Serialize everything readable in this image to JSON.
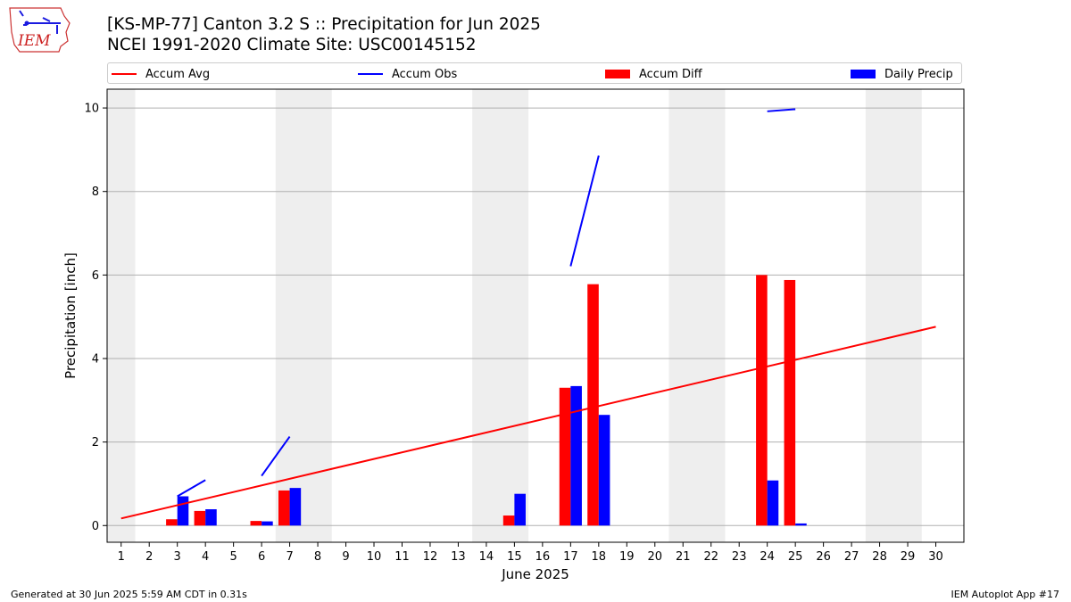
{
  "header": {
    "title_line1": "[KS-MP-77] Canton 3.2 S :: Precipitation for Jun 2025",
    "title_line2": "NCEI 1991-2020 Climate Site: USC00145152"
  },
  "logo": {
    "text": "IEM",
    "icon": "iowa-state-outline-logo"
  },
  "legend": {
    "placement": "top",
    "items": [
      {
        "label": "Accum Avg",
        "kind": "line",
        "color": "#ff0000"
      },
      {
        "label": "Accum Obs",
        "kind": "line",
        "color": "#0000ff"
      },
      {
        "label": "Accum Diff",
        "kind": "bar",
        "color": "#ff0000"
      },
      {
        "label": "Daily Precip",
        "kind": "bar",
        "color": "#0000ff"
      }
    ]
  },
  "footer": {
    "left": "Generated at 30 Jun 2025 5:59 AM CDT in 0.31s",
    "right": "IEM Autoplot App #17"
  },
  "colors": {
    "avg": "#ff0000",
    "obs": "#0000ff",
    "weekend": "#eeeeee",
    "grid": "#b0b0b0"
  },
  "chart_data": {
    "type": "bar",
    "title": "[KS-MP-77] Canton 3.2 S :: Precipitation for Jun 2025",
    "xlabel": "June 2025",
    "ylabel": "Precipitation [inch]",
    "xlim": [
      0.5,
      31
    ],
    "ylim": [
      -0.4,
      10.45
    ],
    "y_ticks": [
      0,
      2,
      4,
      6,
      8,
      10
    ],
    "x_ticks": [
      "1",
      "2",
      "3",
      "4",
      "5",
      "6",
      "7",
      "8",
      "9",
      "10",
      "11",
      "12",
      "13",
      "14",
      "15",
      "16",
      "17",
      "18",
      "19",
      "20",
      "21",
      "22",
      "23",
      "24",
      "25",
      "26",
      "27",
      "28",
      "29",
      "30"
    ],
    "grid": "y",
    "shaded_weekend_days": [
      [
        0.5,
        1.5
      ],
      [
        6.5,
        8.5
      ],
      [
        13.5,
        15.5
      ],
      [
        20.5,
        22.5
      ],
      [
        27.5,
        29.5
      ]
    ],
    "days": [
      1,
      2,
      3,
      4,
      5,
      6,
      7,
      8,
      9,
      10,
      11,
      12,
      13,
      14,
      15,
      16,
      17,
      18,
      19,
      20,
      21,
      22,
      23,
      24,
      25,
      26,
      27,
      28,
      29,
      30
    ],
    "accum_avg": {
      "start": [
        1,
        0.17
      ],
      "end": [
        30,
        4.76
      ]
    },
    "accum_obs_segments": [
      [
        [
          3,
          0.7
        ],
        [
          4,
          1.09
        ]
      ],
      [
        [
          6,
          1.19
        ],
        [
          7,
          2.13
        ]
      ],
      [
        [
          17,
          6.21
        ],
        [
          18,
          8.86
        ]
      ],
      [
        [
          24,
          9.92
        ],
        [
          25,
          9.97
        ]
      ]
    ],
    "series": [
      {
        "name": "Accum Diff",
        "points": [
          [
            3,
            0.15
          ],
          [
            4,
            0.35
          ],
          [
            6,
            0.11
          ],
          [
            7,
            0.84
          ],
          [
            15,
            0.24
          ],
          [
            17,
            3.3
          ],
          [
            18,
            5.78
          ],
          [
            24,
            6.0
          ],
          [
            25,
            5.88
          ]
        ]
      },
      {
        "name": "Daily Precip",
        "points": [
          [
            3,
            0.7
          ],
          [
            4,
            0.39
          ],
          [
            6,
            0.1
          ],
          [
            7,
            0.9
          ],
          [
            15,
            0.76
          ],
          [
            17,
            3.34
          ],
          [
            18,
            2.65
          ],
          [
            24,
            1.08
          ],
          [
            25,
            0.05
          ]
        ]
      }
    ]
  }
}
